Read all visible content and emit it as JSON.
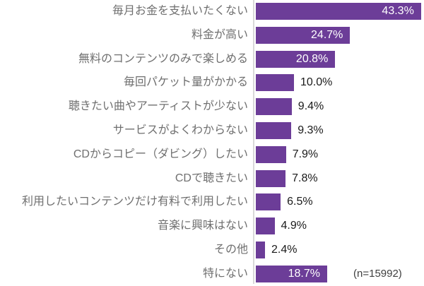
{
  "chart_data": {
    "type": "bar",
    "orientation": "horizontal",
    "categories": [
      "毎月お金を支払いたくない",
      "料金が高い",
      "無料のコンテンツのみで楽しめる",
      "毎回パケット量がかかる",
      "聴きたい曲やアーティストが少ない",
      "サービスがよくわからない",
      "CDからコピー（ダビング）したい",
      "CDで聴きたい",
      "利用したいコンテンツだけ有料で利用したい",
      "音楽に興味はない",
      "その他",
      "特にない"
    ],
    "values": [
      43.3,
      24.7,
      20.8,
      10.0,
      9.4,
      9.3,
      7.9,
      7.8,
      6.5,
      4.9,
      2.4,
      18.7
    ],
    "value_suffix": "%",
    "annotation": "(n=15992)",
    "xlim": [
      0,
      44.5
    ],
    "grid": false,
    "legend": false,
    "colors": {
      "bar": "#6C3D98",
      "category_label": "#6F6F6F",
      "value_label_inside": "#FFFFFF",
      "value_label_outside": "#1A1A1A",
      "annotation": "#404040",
      "axis_line": "#D9D9D9",
      "background": "#FFFFFF"
    }
  }
}
